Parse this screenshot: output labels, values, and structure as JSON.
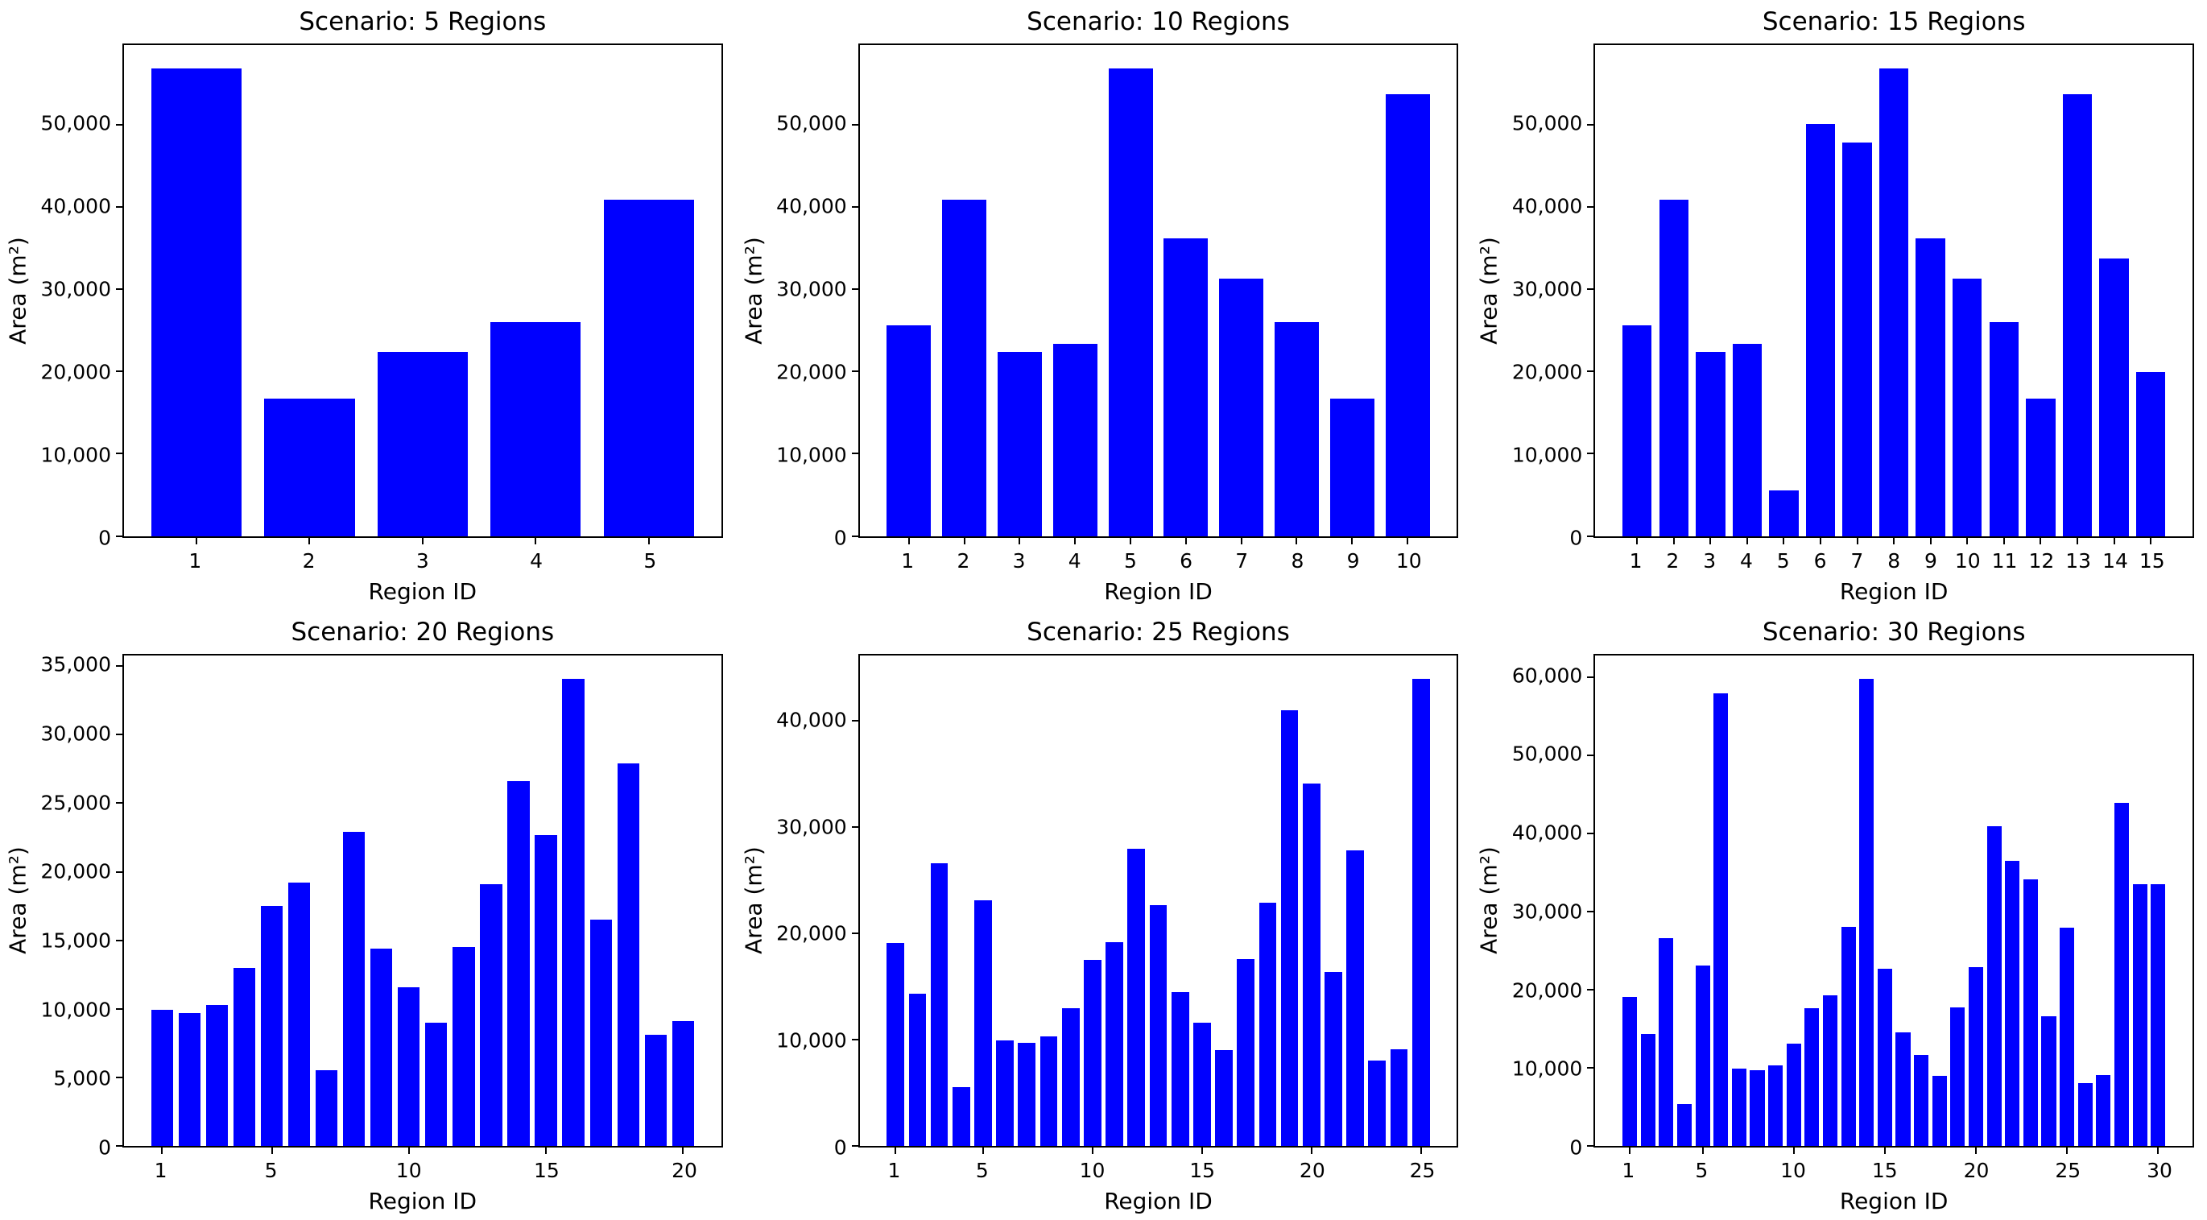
{
  "figure": {
    "background_color": "#ffffff",
    "bar_color": "#0000ff",
    "axis_color": "#000000",
    "text_color": "#000000"
  },
  "chart_data": [
    {
      "type": "bar",
      "title": "Scenario: 5 Regions",
      "xlabel": "Region ID",
      "ylabel": "Area (m²)",
      "categories": [
        1,
        2,
        3,
        4,
        5
      ],
      "values": [
        56800,
        16700,
        22400,
        26000,
        40900
      ],
      "yticks": [
        0,
        10000,
        20000,
        30000,
        40000,
        50000
      ],
      "xticks": [
        1,
        2,
        3,
        4,
        5
      ],
      "ylim": [
        0,
        59640
      ],
      "grid": false,
      "legend": "none"
    },
    {
      "type": "bar",
      "title": "Scenario: 10 Regions",
      "xlabel": "Region ID",
      "ylabel": "Area (m²)",
      "categories": [
        1,
        2,
        3,
        4,
        5,
        6,
        7,
        8,
        9,
        10
      ],
      "values": [
        25600,
        40900,
        22400,
        23300,
        56800,
        36200,
        31300,
        26000,
        16700,
        53700
      ],
      "yticks": [
        0,
        10000,
        20000,
        30000,
        40000,
        50000
      ],
      "xticks": [
        1,
        2,
        3,
        4,
        5,
        6,
        7,
        8,
        9,
        10
      ],
      "ylim": [
        0,
        59640
      ],
      "grid": false,
      "legend": "none"
    },
    {
      "type": "bar",
      "title": "Scenario: 15 Regions",
      "xlabel": "Region ID",
      "ylabel": "Area (m²)",
      "categories": [
        1,
        2,
        3,
        4,
        5,
        6,
        7,
        8,
        9,
        10,
        11,
        12,
        13,
        14,
        15
      ],
      "values": [
        25600,
        40900,
        22400,
        23300,
        5500,
        50100,
        47800,
        56800,
        36200,
        31300,
        26000,
        16700,
        53700,
        33700,
        19900
      ],
      "yticks": [
        0,
        10000,
        20000,
        30000,
        40000,
        50000
      ],
      "xticks": [
        1,
        2,
        3,
        4,
        5,
        6,
        7,
        8,
        9,
        10,
        11,
        12,
        13,
        14,
        15
      ],
      "ylim": [
        0,
        59640
      ],
      "grid": false,
      "legend": "none"
    },
    {
      "type": "bar",
      "title": "Scenario: 20 Regions",
      "xlabel": "Region ID",
      "ylabel": "Area (m²)",
      "categories": [
        1,
        2,
        3,
        4,
        5,
        6,
        7,
        8,
        9,
        10,
        11,
        12,
        13,
        14,
        15,
        16,
        17,
        18,
        19,
        20
      ],
      "values": [
        9900,
        9700,
        10300,
        13000,
        17500,
        19200,
        5500,
        22900,
        14400,
        11600,
        9000,
        14500,
        19100,
        26600,
        22700,
        34100,
        16500,
        27900,
        8100,
        9100
      ],
      "yticks": [
        0,
        5000,
        10000,
        15000,
        20000,
        25000,
        30000,
        35000
      ],
      "xticks": [
        1,
        5,
        10,
        15,
        20
      ],
      "ylim": [
        0,
        35805
      ],
      "grid": false,
      "legend": "none"
    },
    {
      "type": "bar",
      "title": "Scenario: 25 Regions",
      "xlabel": "Region ID",
      "ylabel": "Area (m²)",
      "categories": [
        1,
        2,
        3,
        4,
        5,
        6,
        7,
        8,
        9,
        10,
        11,
        12,
        13,
        14,
        15,
        16,
        17,
        18,
        19,
        20,
        21,
        22,
        23,
        24,
        25
      ],
      "values": [
        19100,
        14300,
        26600,
        5500,
        23100,
        9900,
        9700,
        10300,
        13000,
        17500,
        19200,
        28000,
        22700,
        14500,
        11600,
        9000,
        17600,
        22900,
        41000,
        34100,
        16400,
        27800,
        8000,
        9100,
        44000
      ],
      "yticks": [
        0,
        10000,
        20000,
        30000,
        40000
      ],
      "xticks": [
        1,
        5,
        10,
        15,
        20,
        25
      ],
      "ylim": [
        0,
        46200
      ],
      "grid": false,
      "legend": "none"
    },
    {
      "type": "bar",
      "title": "Scenario: 30 Regions",
      "xlabel": "Region ID",
      "ylabel": "Area (m²)",
      "categories": [
        1,
        2,
        3,
        4,
        5,
        6,
        7,
        8,
        9,
        10,
        11,
        12,
        13,
        14,
        15,
        16,
        17,
        18,
        19,
        20,
        21,
        22,
        23,
        24,
        25,
        26,
        27,
        28,
        29,
        30
      ],
      "values": [
        19100,
        14300,
        26600,
        5400,
        23100,
        57900,
        9900,
        9700,
        10300,
        13100,
        17600,
        19300,
        28000,
        59800,
        22700,
        14500,
        11600,
        9000,
        17700,
        22900,
        40900,
        36500,
        34100,
        16600,
        27900,
        8000,
        9100,
        43900,
        33500,
        33500
      ],
      "yticks": [
        0,
        10000,
        20000,
        30000,
        40000,
        50000,
        60000
      ],
      "xticks": [
        1,
        5,
        10,
        15,
        20,
        25,
        30
      ],
      "ylim": [
        0,
        62790
      ],
      "grid": false,
      "legend": "none"
    }
  ]
}
